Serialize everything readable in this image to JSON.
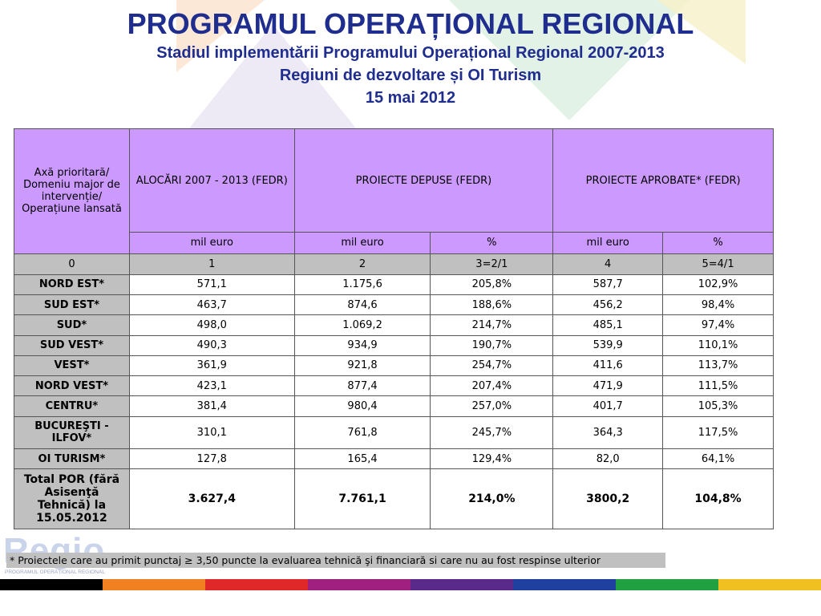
{
  "header": {
    "title": "PROGRAMUL OPERAȚIONAL REGIONAL",
    "subtitle": "Stadiul implementării Programului Operațional Regional 2007-2013",
    "subtitle2": "Regiuni de dezvoltare și OI Turism",
    "date": "15 mai 2012"
  },
  "table": {
    "header": {
      "col0": "Axă prioritară/ Domeniu major de intervenție/ Operațiune lansată",
      "alloc": "ALOCĂRI 2007 - 2013 (FEDR)",
      "submitted": "PROIECTE DEPUSE (FEDR)",
      "approved": "PROIECTE APROBATE* (FEDR)"
    },
    "units": [
      "mil euro",
      "mil euro",
      "%",
      "mil euro",
      "%"
    ],
    "index_row": [
      "0",
      "1",
      "2",
      "3=2/1",
      "4",
      "5=4/1"
    ],
    "rows": [
      {
        "region": "NORD EST*",
        "alloc": "571,1",
        "sub": "1.175,6",
        "sub_pct": "205,8%",
        "appr": "587,7",
        "appr_pct": "102,9%"
      },
      {
        "region": "SUD EST*",
        "alloc": "463,7",
        "sub": "874,6",
        "sub_pct": "188,6%",
        "appr": "456,2",
        "appr_pct": "98,4%"
      },
      {
        "region": "SUD*",
        "alloc": "498,0",
        "sub": "1.069,2",
        "sub_pct": "214,7%",
        "appr": "485,1",
        "appr_pct": "97,4%"
      },
      {
        "region": "SUD VEST*",
        "alloc": "490,3",
        "sub": "934,9",
        "sub_pct": "190,7%",
        "appr": "539,9",
        "appr_pct": "110,1%"
      },
      {
        "region": "VEST*",
        "alloc": "361,9",
        "sub": "921,8",
        "sub_pct": "254,7%",
        "appr": "411,6",
        "appr_pct": "113,7%"
      },
      {
        "region": "NORD VEST*",
        "alloc": "423,1",
        "sub": "877,4",
        "sub_pct": "207,4%",
        "appr": "471,9",
        "appr_pct": "111,5%"
      },
      {
        "region": "CENTRU*",
        "alloc": "381,4",
        "sub": "980,4",
        "sub_pct": "257,0%",
        "appr": "401,7",
        "appr_pct": "105,3%"
      },
      {
        "region": "BUCUREŞTI - ILFOV*",
        "alloc": "310,1",
        "sub": "761,8",
        "sub_pct": "245,7%",
        "appr": "364,3",
        "appr_pct": "117,5%"
      },
      {
        "region": "OI TURISM*",
        "alloc": "127,8",
        "sub": "165,4",
        "sub_pct": "129,4%",
        "appr": "82,0",
        "appr_pct": "64,1%"
      }
    ],
    "total": {
      "region": "Total POR (fără Asisenţă Tehnică) la 15.05.2012",
      "alloc": "3.627,4",
      "sub": "7.761,1",
      "sub_pct": "214,0%",
      "appr": "3800,2",
      "appr_pct": "104,8%"
    }
  },
  "footnote": "* Proiectele care au primit punctaj ≥ 3,50 puncte la evaluarea tehnică şi financiară si care nu au fost respinse ulterior",
  "logo": {
    "word": "Regio",
    "sub": "PROGRAMUL OPERAȚIONAL REGIONAL"
  },
  "colors": {
    "title": "#1f2d8f",
    "header_bg": "#cc99ff",
    "label_bg": "#c0c0c0",
    "stripe": [
      "#000000",
      "#f08020",
      "#e02828",
      "#a02080",
      "#5a2a8a",
      "#2040a0",
      "#20a040",
      "#f0c020"
    ]
  }
}
